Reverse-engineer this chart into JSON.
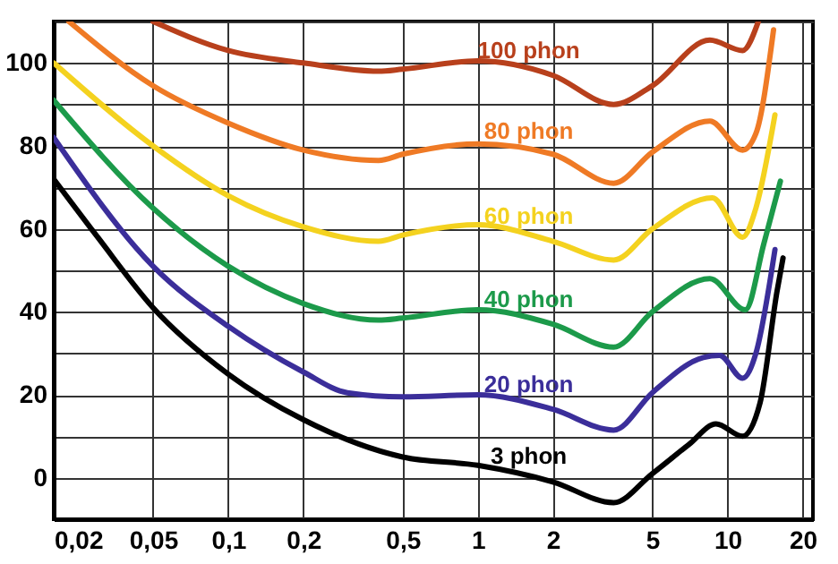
{
  "chart_data": {
    "type": "line",
    "log": "x",
    "grid": true,
    "legend": false,
    "marker": "none",
    "line_style": "solid",
    "xlim": [
      0.02,
      22
    ],
    "ylim": [
      -10,
      110
    ],
    "xticks": [
      {
        "value": 0.02,
        "label": "0,02"
      },
      {
        "value": 0.05,
        "label": "0,05"
      },
      {
        "value": 0.1,
        "label": "0,1"
      },
      {
        "value": 0.2,
        "label": "0,2"
      },
      {
        "value": 0.5,
        "label": "0,5"
      },
      1,
      2,
      5,
      10,
      20
    ],
    "yticks": [
      {
        "value": -10,
        "label": null
      },
      0,
      {
        "value": 10,
        "label": null
      },
      20,
      {
        "value": 30,
        "label": null
      },
      40,
      {
        "value": 50,
        "label": null
      },
      60,
      {
        "value": 70,
        "label": null
      },
      80,
      {
        "value": 90,
        "label": null
      },
      100,
      {
        "value": 110,
        "label": null
      }
    ],
    "series": [
      {
        "name": "100 phon",
        "color": "#b8401c",
        "x": [
          0.05,
          0.1,
          0.2,
          0.4,
          0.5,
          1,
          2,
          3.5,
          5,
          8.5,
          11.5,
          13.3
        ],
        "values": [
          110,
          103,
          100,
          98,
          98.5,
          100.5,
          97,
          90,
          94.5,
          105.5,
          103,
          110
        ]
      },
      {
        "name": "80 phon",
        "color": "#ef7a25",
        "x": [
          0.023,
          0.05,
          0.1,
          0.2,
          0.4,
          0.5,
          1,
          2,
          3.5,
          5,
          8.5,
          11.5,
          13,
          15.3
        ],
        "values": [
          110,
          94.5,
          85.5,
          79,
          76.5,
          78,
          80.5,
          78,
          71,
          78.5,
          86,
          79,
          83,
          108
        ]
      },
      {
        "name": "60 phon",
        "color": "#f4d21f",
        "x": [
          0.02,
          0.05,
          0.1,
          0.2,
          0.4,
          0.5,
          1,
          2,
          3.5,
          5,
          8.7,
          11.5,
          13,
          15.5
        ],
        "values": [
          100,
          80,
          68,
          60.5,
          57,
          58.5,
          61,
          57,
          52.5,
          60,
          67.5,
          58,
          65,
          87.5
        ]
      },
      {
        "name": "40 phon",
        "color": "#1c9a4a",
        "x": [
          0.02,
          0.05,
          0.1,
          0.2,
          0.4,
          0.5,
          1,
          2,
          3.5,
          5,
          8.5,
          11.8,
          14,
          16.3
        ],
        "values": [
          91,
          65,
          51,
          42,
          38,
          38.5,
          40.5,
          37,
          31.5,
          40,
          48,
          40.5,
          56.5,
          71.5
        ]
      },
      {
        "name": "20 phon",
        "color": "#3b2e9a",
        "x": [
          0.02,
          0.05,
          0.1,
          0.2,
          0.3,
          0.5,
          1,
          2,
          3.5,
          5,
          8,
          9.3,
          11.5,
          13,
          15.5
        ],
        "values": [
          82,
          51,
          36.5,
          25.5,
          20.5,
          19.5,
          20,
          16.5,
          11.5,
          20.5,
          29,
          29.5,
          24,
          30,
          55
        ]
      },
      {
        "name": "3 phon",
        "color": "#000000",
        "x": [
          0.02,
          0.03,
          0.05,
          0.1,
          0.2,
          0.5,
          1,
          2,
          3.5,
          5,
          7,
          9,
          11.5,
          13.5,
          15.8,
          16.7
        ],
        "values": [
          72,
          58,
          41,
          25,
          14,
          5,
          3,
          -1,
          -6,
          1,
          8,
          13,
          10,
          18,
          45,
          53
        ]
      }
    ]
  }
}
